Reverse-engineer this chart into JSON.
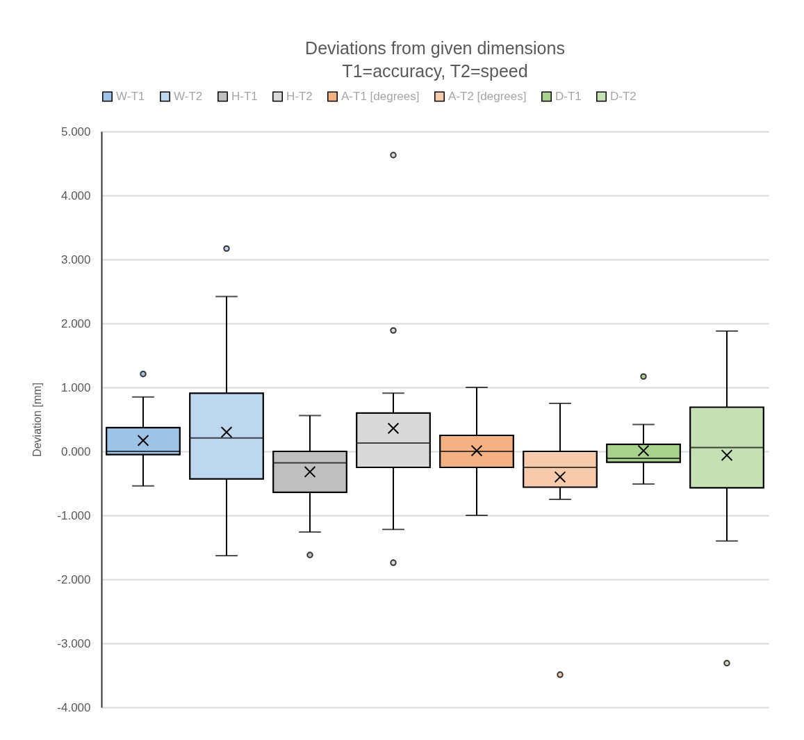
{
  "chart_data": {
    "type": "box",
    "title": "Deviations from given dimensions",
    "subtitle": "T1=accuracy, T2=speed",
    "ylabel": "Deviation [mm]",
    "categories": [
      null
    ],
    "legend": "top",
    "grid": "y",
    "ylim": [
      -4,
      5
    ],
    "yticks": [
      {
        "value": -4,
        "label": "-4.000"
      },
      {
        "value": -3,
        "label": "-3.000"
      },
      {
        "value": -2,
        "label": "-2.000"
      },
      {
        "value": -1,
        "label": "-1.000"
      },
      {
        "value": 0,
        "label": "0.000"
      },
      {
        "value": 1,
        "label": "1.000"
      },
      {
        "value": 2,
        "label": "2.000"
      },
      {
        "value": 3,
        "label": "3.000"
      },
      {
        "value": 4,
        "label": "4.000"
      },
      {
        "value": 5,
        "label": "5.000"
      }
    ],
    "series": [
      {
        "name": "W-T1",
        "color": "#9dc3e6",
        "boxes": [
          {
            "low": -0.54,
            "q1": -0.05,
            "median": 0.0,
            "q3": 0.37,
            "high": 0.85,
            "mean": 0.17,
            "outliers": [
              1.21
            ]
          }
        ]
      },
      {
        "name": "W-T2",
        "color": "#bdd7ee",
        "boxes": [
          {
            "low": -1.63,
            "q1": -0.43,
            "median": 0.21,
            "q3": 0.91,
            "high": 2.42,
            "mean": 0.3,
            "outliers": [
              3.17
            ]
          }
        ]
      },
      {
        "name": "H-T1",
        "color": "#bfbfbf",
        "boxes": [
          {
            "low": -1.26,
            "q1": -0.64,
            "median": -0.18,
            "q3": 0.0,
            "high": 0.56,
            "mean": -0.32,
            "outliers": [
              -1.62
            ]
          }
        ]
      },
      {
        "name": "H-T2",
        "color": "#d9d9d9",
        "boxes": [
          {
            "low": -1.22,
            "q1": -0.25,
            "median": 0.13,
            "q3": 0.6,
            "high": 0.91,
            "mean": 0.36,
            "outliers": [
              4.63,
              1.89,
              -1.74
            ]
          }
        ]
      },
      {
        "name": "A-T1 [degrees]",
        "color": "#f4b183",
        "boxes": [
          {
            "low": -1.0,
            "q1": -0.25,
            "median": 0.0,
            "q3": 0.25,
            "high": 1.0,
            "mean": 0.01
          }
        ]
      },
      {
        "name": "A-T2 [degrees]",
        "color": "#f8cbad",
        "boxes": [
          {
            "low": -0.75,
            "q1": -0.56,
            "median": -0.25,
            "q3": 0.0,
            "high": 0.75,
            "mean": -0.4,
            "outliers": [
              -3.49
            ]
          }
        ]
      },
      {
        "name": "D-T1",
        "color": "#a9d18e",
        "boxes": [
          {
            "low": -0.51,
            "q1": -0.17,
            "median": -0.11,
            "q3": 0.11,
            "high": 0.42,
            "mean": 0.01,
            "outliers": [
              1.17
            ]
          }
        ]
      },
      {
        "name": "D-T2",
        "color": "#c5e0b4",
        "boxes": [
          {
            "low": -1.4,
            "q1": -0.57,
            "median": 0.06,
            "q3": 0.69,
            "high": 1.88,
            "mean": -0.06,
            "outliers": [
              -3.31
            ]
          }
        ]
      }
    ]
  }
}
